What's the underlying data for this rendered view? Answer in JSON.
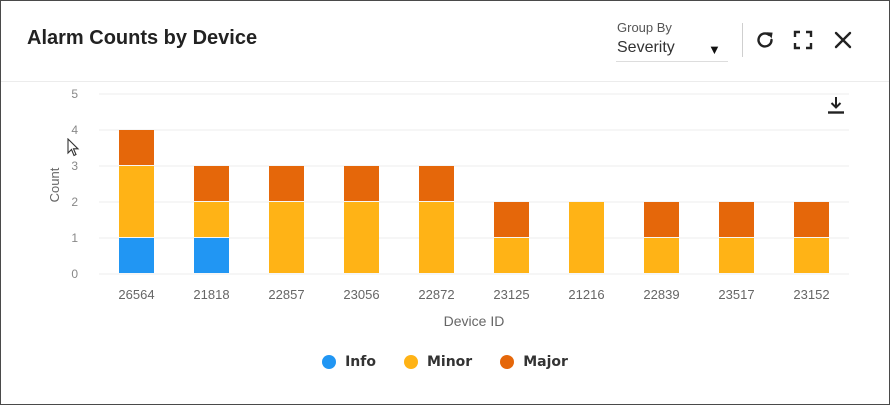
{
  "header": {
    "title": "Alarm Counts by Device",
    "group_by": {
      "label": "Group By",
      "value": "Severity"
    }
  },
  "icons": {
    "refresh": "refresh-icon",
    "fullscreen": "fullscreen-icon",
    "close": "close-icon",
    "download": "download-icon",
    "caret": "caret-down-icon",
    "cursor": "mouse-pointer-icon"
  },
  "colors": {
    "Info": "#2196f3",
    "Minor": "#ffb316",
    "Major": "#e5670a",
    "text": "#222222",
    "axis_text": "#888888"
  },
  "chart_data": {
    "type": "bar",
    "stacked": true,
    "categories": [
      "26564",
      "21818",
      "22857",
      "23056",
      "22872",
      "23125",
      "21216",
      "22839",
      "23517",
      "23152"
    ],
    "series": [
      {
        "name": "Info",
        "values": [
          1,
          1,
          0,
          0,
          0,
          0,
          0,
          0,
          0,
          0
        ]
      },
      {
        "name": "Minor",
        "values": [
          2,
          1,
          2,
          2,
          2,
          1,
          2,
          1,
          1,
          1
        ]
      },
      {
        "name": "Major",
        "values": [
          1,
          1,
          1,
          1,
          1,
          1,
          0,
          1,
          1,
          1
        ]
      }
    ],
    "xlabel": "Device ID",
    "ylabel": "Count",
    "ylim": [
      0,
      5
    ],
    "yticks": [
      0,
      1,
      2,
      3,
      4,
      5
    ],
    "grid": true,
    "legend": "bottom"
  }
}
